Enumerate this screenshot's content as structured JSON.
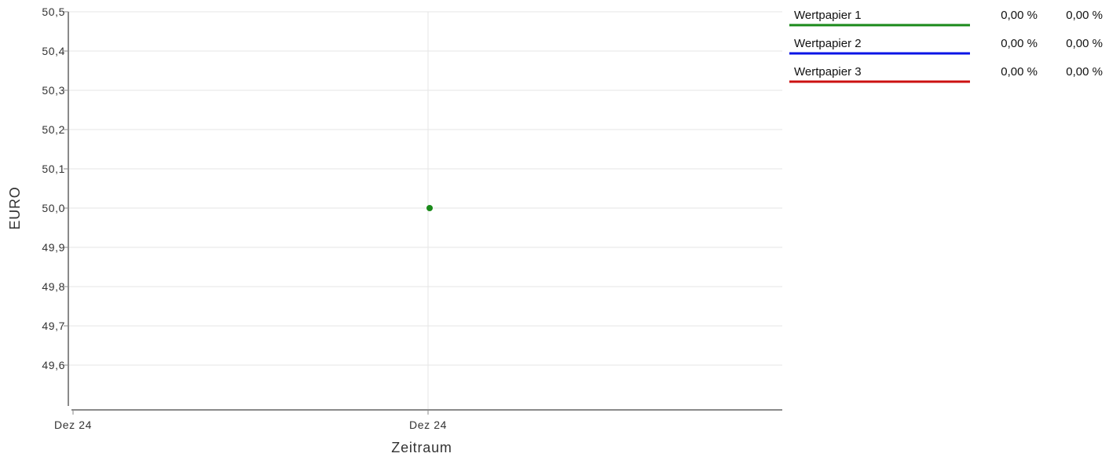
{
  "chart_data": {
    "type": "line",
    "title": "",
    "xlabel": "Zeitraum",
    "ylabel": "EURO",
    "x_ticks": [
      "Dez 24",
      "Dez 24"
    ],
    "y_ticks": [
      "49,6",
      "49,7",
      "49,8",
      "49,9",
      "50,0",
      "50,1",
      "50,2",
      "50,3",
      "50,4",
      "50,5"
    ],
    "y_tick_values": [
      49.6,
      49.7,
      49.8,
      49.9,
      50.0,
      50.1,
      50.2,
      50.3,
      50.4,
      50.5
    ],
    "ylim": [
      49.5,
      50.5
    ],
    "grid": true,
    "legend_position": "right",
    "series": [
      {
        "name": "Wertpapier 1",
        "color": "#1a8a1a",
        "values": [
          50.0
        ],
        "change_1": "0,00 %",
        "change_2": "0,00 %"
      },
      {
        "name": "Wertpapier 2",
        "color": "#0a14e6",
        "values": [],
        "change_1": "0,00 %",
        "change_2": "0,00 %"
      },
      {
        "name": "Wertpapier 3",
        "color": "#cc1111",
        "values": [],
        "change_1": "0,00 %",
        "change_2": "0,00 %"
      }
    ],
    "point": {
      "x": "Dez 24",
      "y": 50.0,
      "series": "Wertpapier 1"
    }
  }
}
